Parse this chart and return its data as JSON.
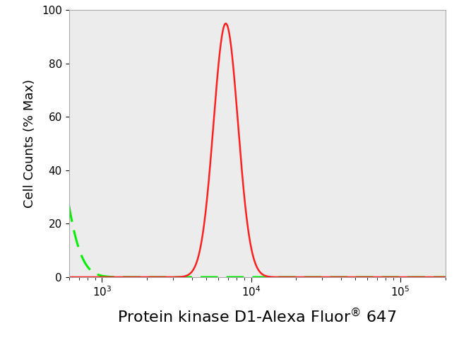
{
  "title": "",
  "xlabel_part1": "Protein kinase D1-Alexa Fluor",
  "xlabel_part2": " 647",
  "ylabel": "Cell Counts (% Max)",
  "xlim_log": [
    600,
    200000
  ],
  "ylim": [
    0,
    100
  ],
  "yticks": [
    0,
    20,
    40,
    60,
    80,
    100
  ],
  "green_color": "#00ee00",
  "red_color": "#ff2020",
  "bg_color": "#ffffff",
  "plot_bg_color": "#ececec",
  "green_peak_log": 2.56,
  "green_sigma_log": 0.135,
  "green_peak_height": 100,
  "red_peak_log": 3.83,
  "red_sigma_log": 0.082,
  "red_peak_height": 95,
  "xlabel_fontsize": 16,
  "ylabel_fontsize": 13,
  "tick_fontsize": 11
}
